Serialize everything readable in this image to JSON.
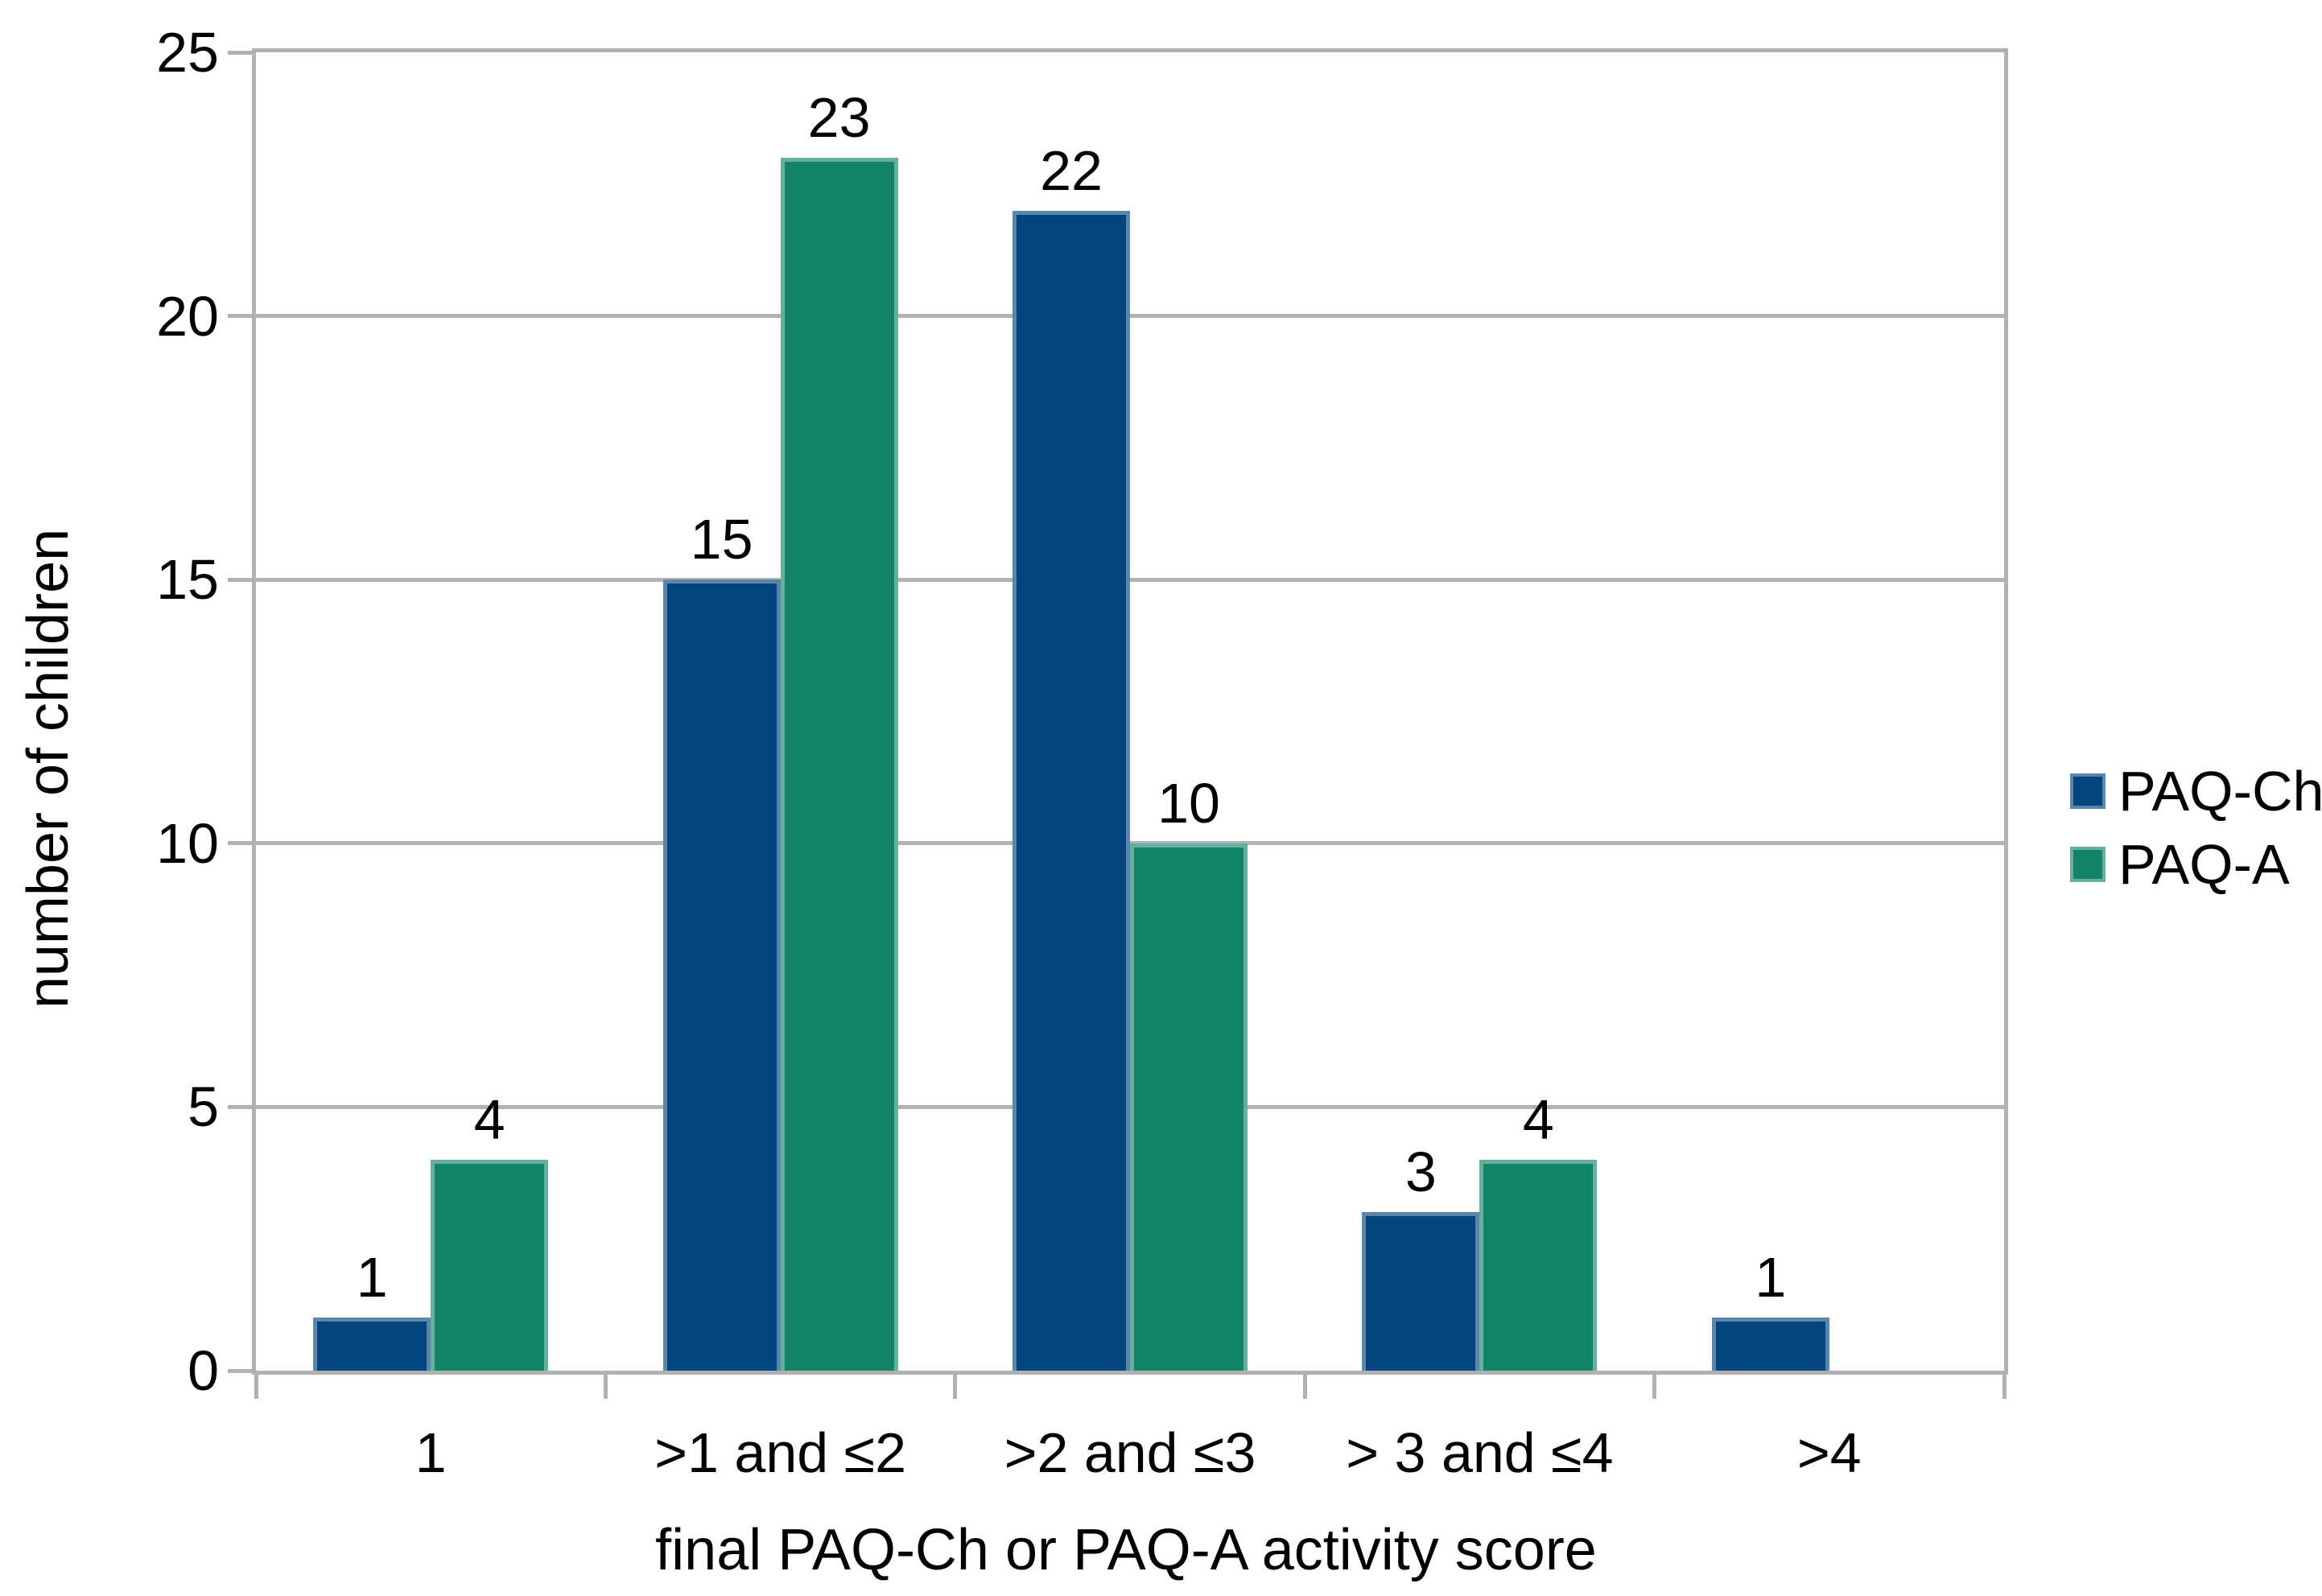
{
  "chart_data": {
    "type": "bar",
    "title": "",
    "xlabel": "final PAQ-Ch or PAQ-A activity score",
    "ylabel": "number of children",
    "categories": [
      "1",
      ">1 and ≤2",
      ">2 and ≤3",
      "> 3 and ≤4",
      ">4"
    ],
    "series": [
      {
        "name": "PAQ-Ch",
        "color": "#044580",
        "values": [
          1,
          15,
          22,
          3,
          1
        ]
      },
      {
        "name": "PAQ-A",
        "color": "#148468",
        "values": [
          4,
          23,
          10,
          4,
          0
        ]
      }
    ],
    "ylim": [
      0,
      25
    ],
    "yticks": [
      0,
      5,
      10,
      15,
      20,
      25
    ],
    "grid": true,
    "grid_color": "#b1b1b1",
    "background": "#ffffff",
    "text_color": "#000000",
    "legend_position": "right",
    "data_labels": true,
    "data_label_rule": "shown above each bar; zero-value bars have no bar and no label"
  }
}
